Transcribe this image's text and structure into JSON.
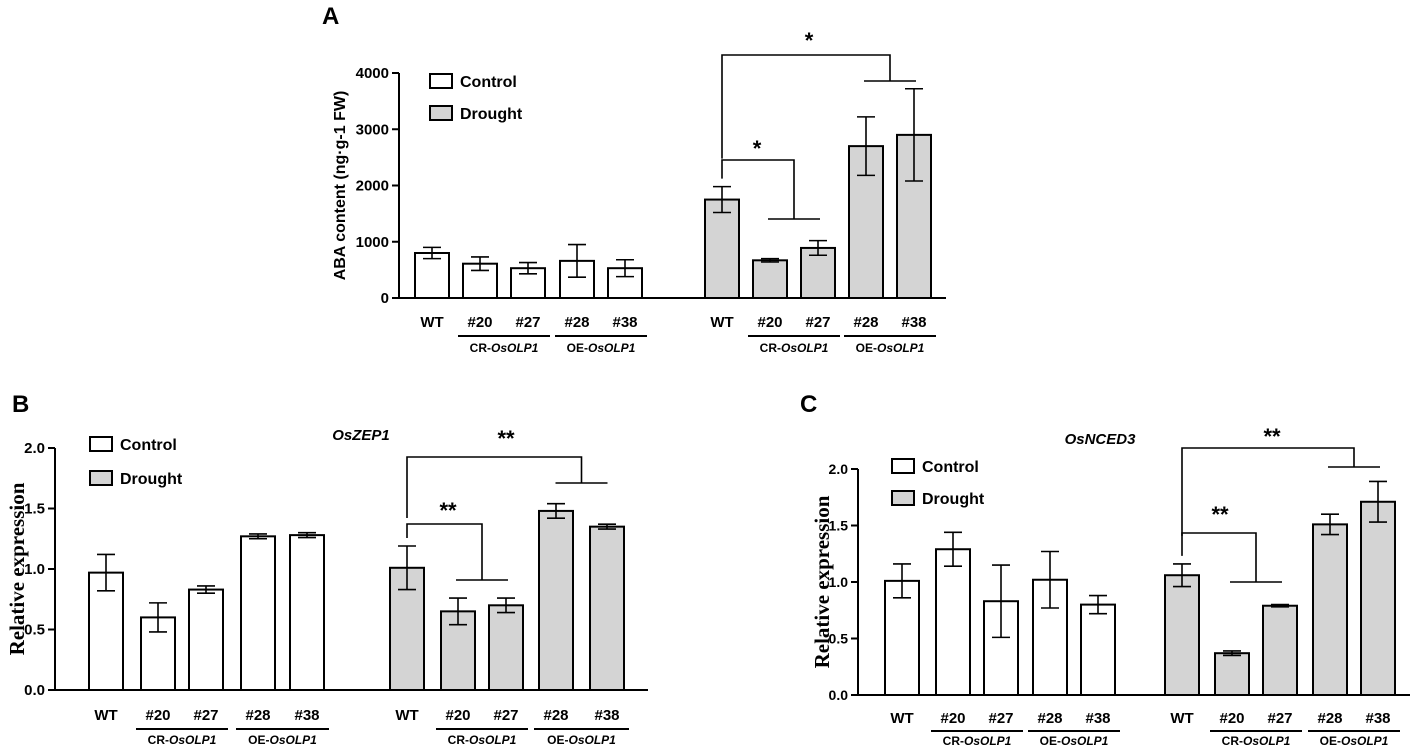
{
  "chart_data": [
    {
      "panel": "A",
      "type": "bar",
      "title": "",
      "ylabel": "ABA content (ng·g-1 FW)",
      "ylim": [
        0,
        4000
      ],
      "yticks": [
        0,
        1000,
        2000,
        3000,
        4000
      ],
      "categories": [
        "WT",
        "#20",
        "#27",
        "#28",
        "#38"
      ],
      "groups": [
        {
          "label": "CR-",
          "gene": "OsOLP1",
          "members": [
            "#20",
            "#27"
          ]
        },
        {
          "label": "OE-",
          "gene": "OsOLP1",
          "members": [
            "#28",
            "#38"
          ]
        }
      ],
      "legend": [
        "Control",
        "Drought"
      ],
      "series": [
        {
          "name": "Control",
          "values": [
            800,
            610,
            530,
            660,
            530
          ],
          "errors": [
            100,
            120,
            100,
            290,
            150
          ]
        },
        {
          "name": "Drought",
          "values": [
            1750,
            670,
            890,
            2700,
            2900
          ],
          "errors": [
            230,
            30,
            130,
            520,
            820
          ]
        }
      ],
      "significance": [
        {
          "label": "*",
          "level": "lower"
        },
        {
          "label": "*",
          "level": "upper"
        }
      ]
    },
    {
      "panel": "B",
      "type": "bar",
      "title": "OsZEP1",
      "ylabel": "Relative expression",
      "ylim": [
        0,
        2.0
      ],
      "yticks": [
        "0.0",
        "0.5",
        "1.0",
        "1.5",
        "2.0"
      ],
      "categories": [
        "WT",
        "#20",
        "#27",
        "#28",
        "#38"
      ],
      "groups": [
        {
          "label": "CR-",
          "gene": "OsOLP1",
          "members": [
            "#20",
            "#27"
          ]
        },
        {
          "label": "OE-",
          "gene": "OsOLP1",
          "members": [
            "#28",
            "#38"
          ]
        }
      ],
      "legend": [
        "Control",
        "Drought"
      ],
      "series": [
        {
          "name": "Control",
          "values": [
            0.97,
            0.6,
            0.83,
            1.27,
            1.28
          ],
          "errors": [
            0.15,
            0.12,
            0.03,
            0.02,
            0.02
          ]
        },
        {
          "name": "Drought",
          "values": [
            1.01,
            0.65,
            0.7,
            1.48,
            1.35
          ],
          "errors": [
            0.18,
            0.11,
            0.06,
            0.06,
            0.02
          ]
        }
      ],
      "significance": [
        {
          "label": "**",
          "level": "lower"
        },
        {
          "label": "**",
          "level": "upper"
        }
      ]
    },
    {
      "panel": "C",
      "type": "bar",
      "title": "OsNCED3",
      "ylabel": "Relative expression",
      "ylim": [
        0,
        2.0
      ],
      "yticks": [
        "0.0",
        "0.5",
        "1.0",
        "1.5",
        "2.0"
      ],
      "categories": [
        "WT",
        "#20",
        "#27",
        "#28",
        "#38"
      ],
      "groups": [
        {
          "label": "CR-",
          "gene": "OsOLP1",
          "members": [
            "#20",
            "#27"
          ]
        },
        {
          "label": "OE-",
          "gene": "OsOLP1",
          "members": [
            "#28",
            "#38"
          ]
        }
      ],
      "legend": [
        "Control",
        "Drought"
      ],
      "series": [
        {
          "name": "Control",
          "values": [
            1.01,
            1.29,
            0.83,
            1.02,
            0.8
          ],
          "errors": [
            0.15,
            0.15,
            0.32,
            0.25,
            0.08
          ]
        },
        {
          "name": "Drought",
          "values": [
            1.06,
            0.37,
            0.79,
            1.51,
            1.71
          ],
          "errors": [
            0.1,
            0.02,
            0.01,
            0.09,
            0.18
          ]
        }
      ],
      "significance": [
        {
          "label": "**",
          "level": "lower"
        },
        {
          "label": "**",
          "level": "upper"
        }
      ]
    }
  ],
  "colors": {
    "control_fill": "#ffffff",
    "drought_fill": "#d4d4d4",
    "stroke": "#000000"
  }
}
